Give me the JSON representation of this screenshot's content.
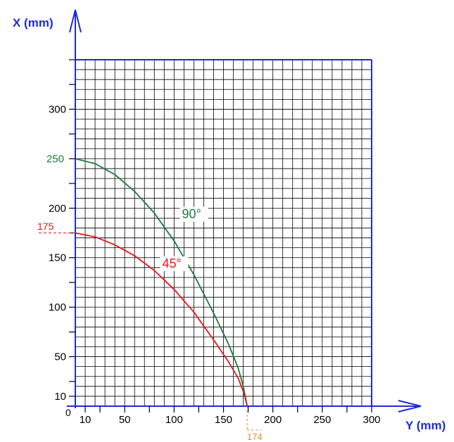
{
  "chart_data": {
    "type": "line",
    "ylabel": "X (mm)",
    "xlabel": "Y (mm)",
    "xlim": [
      0,
      300
    ],
    "ylim": [
      0,
      350
    ],
    "x_ticks": [
      10,
      50,
      100,
      150,
      200,
      250,
      300
    ],
    "y_ticks": [
      10,
      50,
      100,
      150,
      200,
      250,
      300
    ],
    "origin_label": "0",
    "grid": true,
    "minor_grid_step": 10,
    "series": [
      {
        "name": "90°",
        "color": "#1a7a3c",
        "x": [
          0,
          20,
          40,
          60,
          80,
          100,
          120,
          140,
          155,
          165,
          170,
          172,
          174
        ],
        "y": [
          250,
          245,
          234,
          217,
          195,
          167,
          133,
          94,
          63,
          38,
          20,
          10,
          0
        ]
      },
      {
        "name": "45°",
        "color": "#e8141a",
        "x": [
          0,
          20,
          40,
          60,
          80,
          100,
          120,
          140,
          155,
          165,
          170,
          172,
          174
        ],
        "y": [
          175,
          171,
          163,
          152,
          137,
          118,
          95,
          67,
          45,
          28,
          15,
          8,
          0
        ]
      }
    ],
    "annotations": {
      "y_intercept_90": "250",
      "y_intercept_45": "175",
      "x_intercept": "174"
    },
    "colors": {
      "axis": "#1f2bd6",
      "grid": "#000000",
      "intercept_orange": "#e88a1e"
    }
  }
}
